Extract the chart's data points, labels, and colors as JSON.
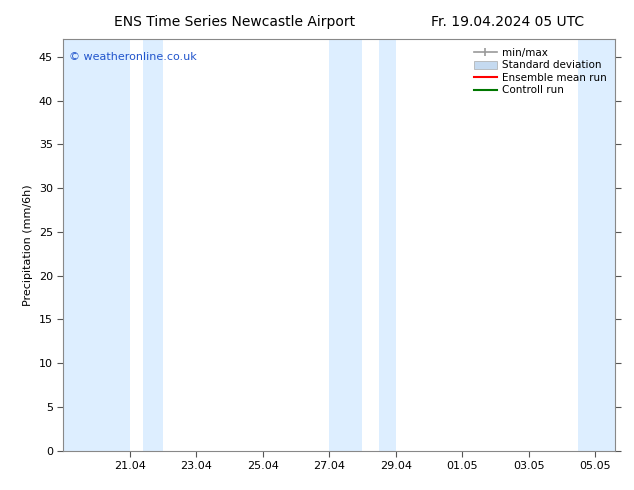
{
  "title_left": "ENS Time Series Newcastle Airport",
  "title_right": "Fr. 19.04.2024 05 UTC",
  "ylabel": "Precipitation (mm/6h)",
  "watermark": "© weatheronline.co.uk",
  "ylim": [
    0,
    47
  ],
  "yticks": [
    0,
    5,
    10,
    15,
    20,
    25,
    30,
    35,
    40,
    45
  ],
  "xtick_labels": [
    "21.04",
    "23.04",
    "25.04",
    "27.04",
    "29.04",
    "01.05",
    "03.05",
    "05.05"
  ],
  "xtick_positions": [
    2,
    4,
    6,
    8,
    10,
    12,
    14,
    16
  ],
  "xlim": [
    0,
    16.6
  ],
  "background_color": "#ffffff",
  "plot_bg_color": "#ffffff",
  "shaded_band_color": "#ddeeff",
  "shaded_bands": [
    [
      0.0,
      2.0
    ],
    [
      2.4,
      3.0
    ],
    [
      8.0,
      9.0
    ],
    [
      9.5,
      10.0
    ],
    [
      15.5,
      16.6
    ]
  ],
  "legend_items": [
    {
      "label": "min/max",
      "type": "minmax",
      "color": "#999999"
    },
    {
      "label": "Standard deviation",
      "type": "patch",
      "color": "#c5daf0"
    },
    {
      "label": "Ensemble mean run",
      "type": "line",
      "color": "#ff0000"
    },
    {
      "label": "Controll run",
      "type": "line",
      "color": "#007700"
    }
  ],
  "font_size_title": 10,
  "font_size_axis_label": 8,
  "font_size_ticks": 8,
  "font_size_legend": 7.5,
  "font_size_watermark": 8,
  "watermark_color": "#2255cc",
  "spine_color": "#888888",
  "tick_color": "#555555"
}
